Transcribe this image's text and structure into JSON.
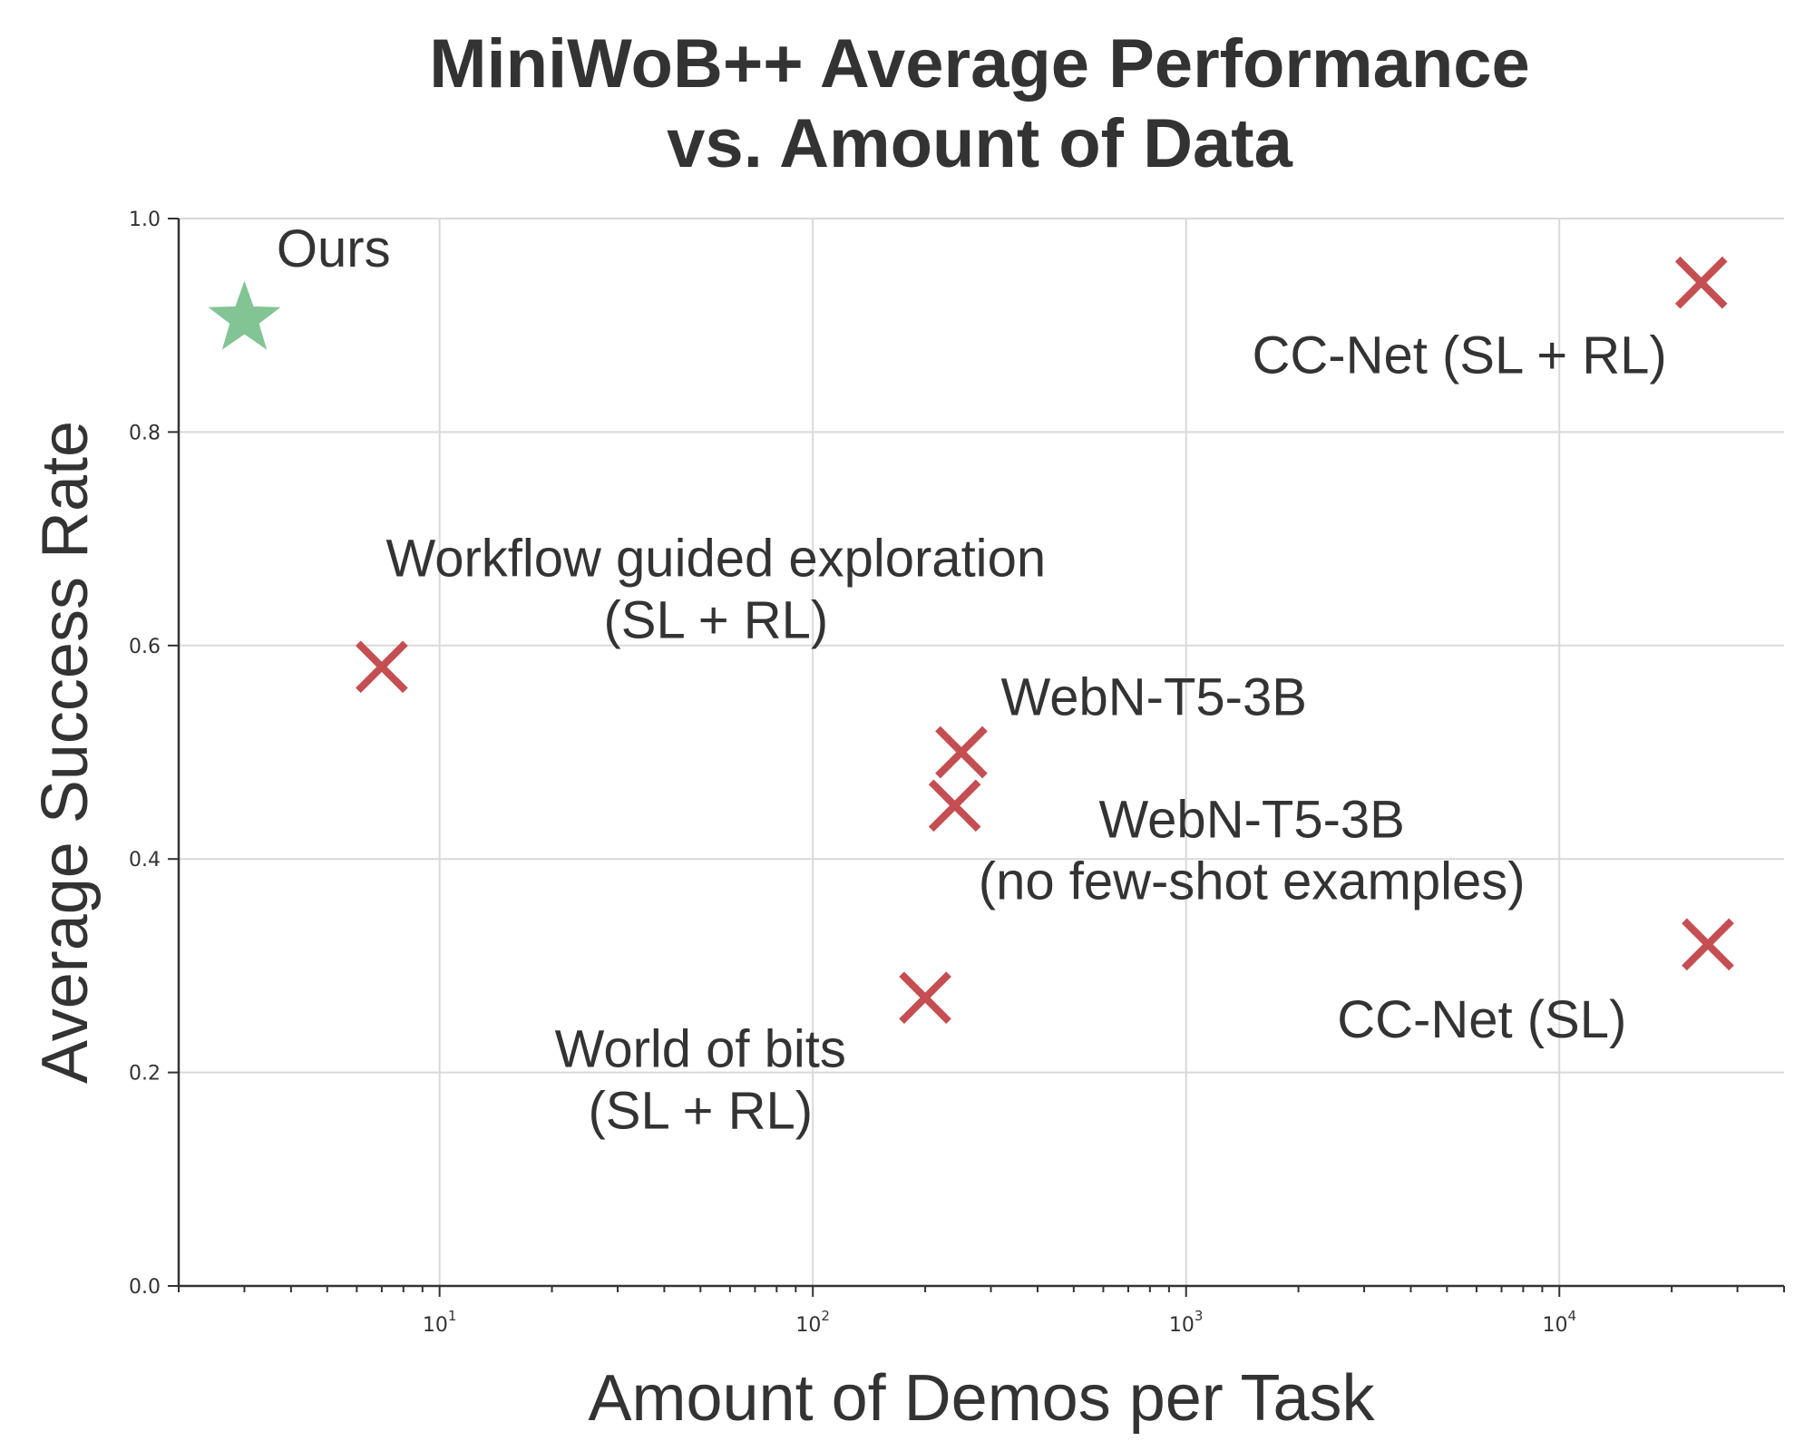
{
  "chart_data": {
    "type": "scatter",
    "title": [
      "MiniWoB++ Average Performance",
      "vs. Amount of Data"
    ],
    "xlabel": "Amount of Demos per Task",
    "ylabel": "Average Success Rate",
    "xscale": "log",
    "xlim": [
      2,
      40000
    ],
    "ylim": [
      0.0,
      1.0
    ],
    "grid": true,
    "x_ticks": [
      {
        "value": 10,
        "base": "10",
        "exp": "1"
      },
      {
        "value": 100,
        "base": "10",
        "exp": "2"
      },
      {
        "value": 1000,
        "base": "10",
        "exp": "3"
      },
      {
        "value": 10000,
        "base": "10",
        "exp": "4"
      }
    ],
    "y_ticks": [
      {
        "value": 0.0,
        "label": "0.0"
      },
      {
        "value": 0.2,
        "label": "0.2"
      },
      {
        "value": 0.4,
        "label": "0.4"
      },
      {
        "value": 0.6,
        "label": "0.6"
      },
      {
        "value": 0.8,
        "label": "0.8"
      },
      {
        "value": 1.0,
        "label": "1.0"
      }
    ],
    "points": [
      {
        "id": "ours",
        "x": 3,
        "y": 0.906,
        "marker": "star",
        "color": "#82c493",
        "label_lines": [
          "Ours"
        ],
        "label_x": 5.2,
        "label_y": 0.955,
        "anchor": "middle"
      },
      {
        "id": "workflow-guided",
        "x": 7,
        "y": 0.58,
        "marker": "x",
        "color": "#c44e52",
        "label_lines": [
          "Workflow guided exploration",
          "(SL + RL)"
        ],
        "label_x": 55,
        "label_y": 0.665,
        "anchor": "middle"
      },
      {
        "id": "webn-t5-3b",
        "x": 250,
        "y": 0.5,
        "marker": "x",
        "color": "#c44e52",
        "label_lines": [
          "WebN-T5-3B"
        ],
        "label_x": 820,
        "label_y": 0.535,
        "anchor": "middle"
      },
      {
        "id": "webn-t5-3b-no-fewshot",
        "x": 240,
        "y": 0.45,
        "marker": "x",
        "color": "#c44e52",
        "label_lines": [
          "WebN-T5-3B",
          "(no few-shot examples)"
        ],
        "label_x": 1500,
        "label_y": 0.42,
        "anchor": "middle"
      },
      {
        "id": "world-of-bits",
        "x": 200,
        "y": 0.27,
        "marker": "x",
        "color": "#c44e52",
        "label_lines": [
          "World of bits",
          "(SL + RL)"
        ],
        "label_x": 50,
        "label_y": 0.205,
        "anchor": "middle"
      },
      {
        "id": "cc-net-sl-rl",
        "x": 24000,
        "y": 0.94,
        "marker": "x",
        "color": "#c44e52",
        "label_lines": [
          "CC-Net (SL + RL)"
        ],
        "label_x": 5400,
        "label_y": 0.855,
        "anchor": "middle"
      },
      {
        "id": "cc-net-sl",
        "x": 25000,
        "y": 0.32,
        "marker": "x",
        "color": "#c44e52",
        "label_lines": [
          "CC-Net (SL)"
        ],
        "label_x": 6200,
        "label_y": 0.233,
        "anchor": "middle"
      }
    ]
  }
}
